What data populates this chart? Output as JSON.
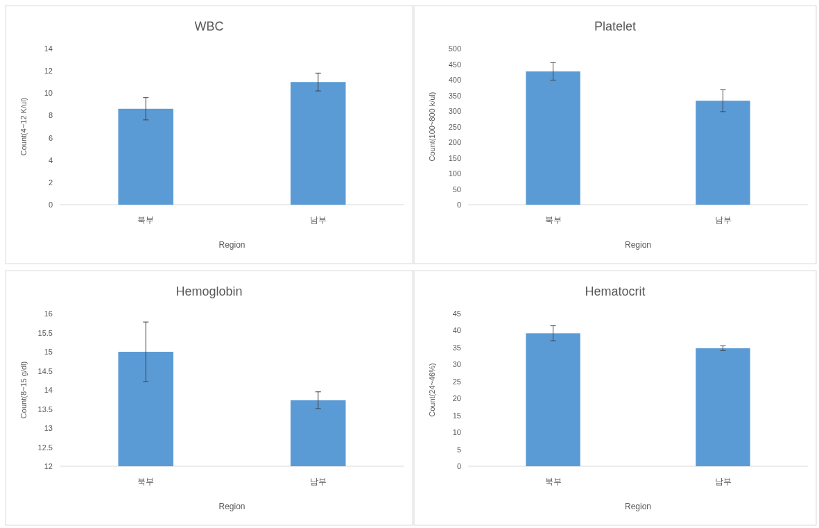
{
  "chart_data": [
    {
      "type": "bar",
      "title": "WBC",
      "xlabel": "Region",
      "ylabel": "Count(4~12 K/ul)",
      "categories": [
        "북부",
        "남부"
      ],
      "values": [
        8.6,
        11.0
      ],
      "errors": [
        1.0,
        0.8
      ],
      "color": "#5b9bd5",
      "ylim": [
        0,
        14
      ],
      "yticks": [
        0,
        2,
        4,
        6,
        8,
        10,
        12,
        14
      ]
    },
    {
      "type": "bar",
      "title": "Platelet",
      "xlabel": "Region",
      "ylabel": "Count(100~800 k/ul)",
      "categories": [
        "북부",
        "남부"
      ],
      "values": [
        427,
        333
      ],
      "errors": [
        28,
        35
      ],
      "color": "#5b9bd5",
      "ylim": [
        0,
        500
      ],
      "yticks": [
        0,
        50,
        100,
        150,
        200,
        250,
        300,
        350,
        400,
        450,
        500
      ]
    },
    {
      "type": "bar",
      "title": "Hemoglobin",
      "xlabel": "Region",
      "ylabel": "Count(8~15 g/dl)",
      "categories": [
        "북부",
        "남부"
      ],
      "values": [
        15.0,
        13.73
      ],
      "errors": [
        0.78,
        0.22
      ],
      "color": "#5b9bd5",
      "ylim": [
        12,
        16
      ],
      "yticks": [
        12,
        12.5,
        13,
        13.5,
        14,
        14.5,
        15,
        15.5,
        16
      ]
    },
    {
      "type": "bar",
      "title": "Hematocrit",
      "xlabel": "Region",
      "ylabel": "Count(24~46%)",
      "categories": [
        "북부",
        "남부"
      ],
      "values": [
        39.2,
        34.8
      ],
      "errors": [
        2.2,
        0.7
      ],
      "color": "#5b9bd5",
      "ylim": [
        0,
        45
      ],
      "yticks": [
        0,
        5,
        10,
        15,
        20,
        25,
        30,
        35,
        40,
        45
      ]
    }
  ]
}
